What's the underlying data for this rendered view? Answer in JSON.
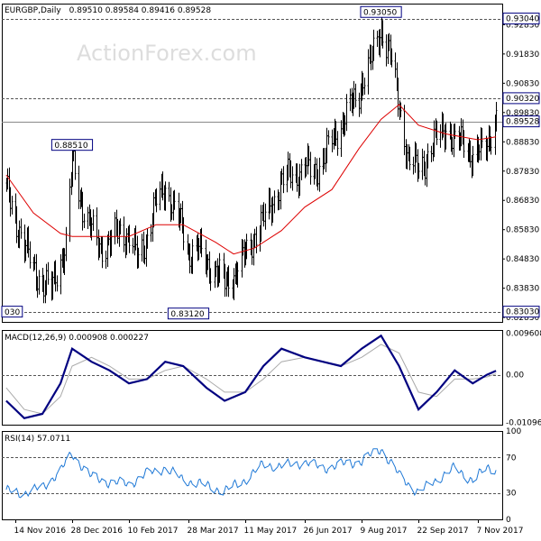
{
  "header": {
    "symbol": "EURGBP,Daily",
    "ohlc": "0.89510 0.89584 0.89416 0.89528"
  },
  "watermark": "ActionForex.com",
  "colors": {
    "price_bars": "#000000",
    "moving_average": "#dd0000",
    "macd_line": "#000080",
    "macd_signal": "#aaaaaa",
    "rsi_line": "#1e78d6",
    "level_box_border": "#000080",
    "dashed_levels": "#555555"
  },
  "chart_data": [
    {
      "type": "ohlc",
      "panel": "price",
      "header": "EURGBP,Daily 0.89510 0.89584 0.89416 0.89528",
      "ylim": [
        0.8268,
        0.9355
      ],
      "y_tick_labels": [
        "0.92830",
        "0.91830",
        "0.90830",
        "0.89830",
        "0.88830",
        "0.87830",
        "0.86830",
        "0.85830",
        "0.84830",
        "0.83830",
        "0.82830"
      ],
      "x_tick_labels": [
        "14 Nov 2016",
        "28 Dec 2016",
        "10 Feb 2017",
        "28 Mar 2017",
        "11 May 2017",
        "26 Jun 2017",
        "9 Aug 2017",
        "22 Sep 2017",
        "7 Nov 2017"
      ],
      "horizontal_levels": [
        {
          "value": 0.9304,
          "label": "0.93040"
        },
        {
          "value": 0.9032,
          "label": "0.90320"
        },
        {
          "value": 0.89528,
          "label": "0.89528",
          "style": "current"
        },
        {
          "value": 0.8303,
          "label": "0.83030"
        }
      ],
      "annotations": [
        {
          "date": "2016-12-28",
          "value": 0.8851,
          "label": "0.88510"
        },
        {
          "date": "2017-03-28",
          "value": 0.8312,
          "label": "0.83120"
        },
        {
          "date": "2017-08-24",
          "value": 0.9305,
          "label": "0.93050"
        },
        {
          "date": "2016-11-14",
          "value": 0.8303,
          "label": "030"
        }
      ],
      "close_path": [
        [
          "2016-11-07",
          0.872
        ],
        [
          "2016-11-14",
          0.862
        ],
        [
          "2016-11-21",
          0.853
        ],
        [
          "2016-11-28",
          0.845
        ],
        [
          "2016-12-05",
          0.84
        ],
        [
          "2016-12-12",
          0.838
        ],
        [
          "2016-12-19",
          0.848
        ],
        [
          "2016-12-23",
          0.853
        ],
        [
          "2016-12-28",
          0.882
        ],
        [
          "2017-01-05",
          0.866
        ],
        [
          "2017-01-12",
          0.858
        ],
        [
          "2017-01-19",
          0.852
        ],
        [
          "2017-01-26",
          0.854
        ],
        [
          "2017-02-02",
          0.858
        ],
        [
          "2017-02-10",
          0.856
        ],
        [
          "2017-02-17",
          0.848
        ],
        [
          "2017-02-24",
          0.856
        ],
        [
          "2017-03-03",
          0.868
        ],
        [
          "2017-03-10",
          0.873
        ],
        [
          "2017-03-17",
          0.865
        ],
        [
          "2017-03-24",
          0.858
        ],
        [
          "2017-03-28",
          0.85
        ],
        [
          "2017-04-04",
          0.852
        ],
        [
          "2017-04-11",
          0.847
        ],
        [
          "2017-04-18",
          0.844
        ],
        [
          "2017-04-25",
          0.84
        ],
        [
          "2017-05-02",
          0.843
        ],
        [
          "2017-05-11",
          0.85
        ],
        [
          "2017-05-18",
          0.856
        ],
        [
          "2017-05-25",
          0.862
        ],
        [
          "2017-06-01",
          0.868
        ],
        [
          "2017-06-08",
          0.874
        ],
        [
          "2017-06-15",
          0.878
        ],
        [
          "2017-06-22",
          0.877
        ],
        [
          "2017-06-26",
          0.88
        ],
        [
          "2017-07-03",
          0.878
        ],
        [
          "2017-07-10",
          0.882
        ],
        [
          "2017-07-17",
          0.889
        ],
        [
          "2017-07-24",
          0.894
        ],
        [
          "2017-07-31",
          0.9
        ],
        [
          "2017-08-07",
          0.905
        ],
        [
          "2017-08-09",
          0.909
        ],
        [
          "2017-08-16",
          0.916
        ],
        [
          "2017-08-24",
          0.927
        ],
        [
          "2017-08-31",
          0.918
        ],
        [
          "2017-09-07",
          0.9
        ],
        [
          "2017-09-14",
          0.882
        ],
        [
          "2017-09-22",
          0.879
        ],
        [
          "2017-09-29",
          0.883
        ],
        [
          "2017-10-06",
          0.89
        ],
        [
          "2017-10-13",
          0.894
        ],
        [
          "2017-10-20",
          0.887
        ],
        [
          "2017-10-27",
          0.89
        ],
        [
          "2017-11-03",
          0.882
        ],
        [
          "2017-11-07",
          0.884
        ],
        [
          "2017-11-14",
          0.889
        ],
        [
          "2017-11-21",
          0.8953
        ]
      ],
      "ma_path": [
        [
          "2016-11-07",
          0.877
        ],
        [
          "2016-11-28",
          0.864
        ],
        [
          "2016-12-19",
          0.857
        ],
        [
          "2016-12-28",
          0.856
        ],
        [
          "2017-01-19",
          0.856
        ],
        [
          "2017-02-10",
          0.856
        ],
        [
          "2017-03-03",
          0.86
        ],
        [
          "2017-03-24",
          0.86
        ],
        [
          "2017-04-18",
          0.854
        ],
        [
          "2017-05-02",
          0.85
        ],
        [
          "2017-05-18",
          0.852
        ],
        [
          "2017-06-08",
          0.858
        ],
        [
          "2017-06-26",
          0.866
        ],
        [
          "2017-07-17",
          0.872
        ],
        [
          "2017-08-07",
          0.886
        ],
        [
          "2017-08-24",
          0.896
        ],
        [
          "2017-09-07",
          0.901
        ],
        [
          "2017-09-22",
          0.894
        ],
        [
          "2017-10-13",
          0.891
        ],
        [
          "2017-11-07",
          0.889
        ],
        [
          "2017-11-21",
          0.89
        ]
      ]
    },
    {
      "type": "line",
      "panel": "macd",
      "label": "MACD(12,26,9) 0.000908 0.000227",
      "ylim": [
        -0.0115,
        0.0103
      ],
      "y_tick_labels": [
        "0.009608",
        "0.00",
        "-0.010961"
      ],
      "zero_line": true,
      "macd_path": [
        [
          "2016-11-07",
          -0.006
        ],
        [
          "2016-11-21",
          -0.01
        ],
        [
          "2016-12-05",
          -0.009
        ],
        [
          "2016-12-19",
          -0.002
        ],
        [
          "2016-12-28",
          0.006
        ],
        [
          "2017-01-12",
          0.003
        ],
        [
          "2017-01-26",
          0.001
        ],
        [
          "2017-02-10",
          -0.002
        ],
        [
          "2017-02-24",
          -0.001
        ],
        [
          "2017-03-10",
          0.003
        ],
        [
          "2017-03-24",
          0.002
        ],
        [
          "2017-04-11",
          -0.003
        ],
        [
          "2017-04-25",
          -0.006
        ],
        [
          "2017-05-11",
          -0.004
        ],
        [
          "2017-05-25",
          0.002
        ],
        [
          "2017-06-08",
          0.006
        ],
        [
          "2017-06-26",
          0.004
        ],
        [
          "2017-07-10",
          0.003
        ],
        [
          "2017-07-24",
          0.002
        ],
        [
          "2017-08-09",
          0.006
        ],
        [
          "2017-08-24",
          0.009
        ],
        [
          "2017-09-07",
          0.002
        ],
        [
          "2017-09-22",
          -0.008
        ],
        [
          "2017-10-06",
          -0.004
        ],
        [
          "2017-10-20",
          0.001
        ],
        [
          "2017-11-03",
          -0.002
        ],
        [
          "2017-11-14",
          0.0
        ],
        [
          "2017-11-21",
          0.0009
        ]
      ],
      "signal_path": [
        [
          "2016-11-07",
          -0.003
        ],
        [
          "2016-11-21",
          -0.008
        ],
        [
          "2016-12-05",
          -0.009
        ],
        [
          "2016-12-19",
          -0.005
        ],
        [
          "2016-12-28",
          0.002
        ],
        [
          "2017-01-12",
          0.004
        ],
        [
          "2017-01-26",
          0.002
        ],
        [
          "2017-02-10",
          -0.001
        ],
        [
          "2017-02-24",
          -0.001
        ],
        [
          "2017-03-10",
          0.001
        ],
        [
          "2017-03-24",
          0.002
        ],
        [
          "2017-04-11",
          -0.001
        ],
        [
          "2017-04-25",
          -0.004
        ],
        [
          "2017-05-11",
          -0.004
        ],
        [
          "2017-05-25",
          -0.001
        ],
        [
          "2017-06-08",
          0.003
        ],
        [
          "2017-06-26",
          0.004
        ],
        [
          "2017-07-10",
          0.003
        ],
        [
          "2017-07-24",
          0.002
        ],
        [
          "2017-08-09",
          0.004
        ],
        [
          "2017-08-24",
          0.007
        ],
        [
          "2017-09-07",
          0.005
        ],
        [
          "2017-09-22",
          -0.004
        ],
        [
          "2017-10-06",
          -0.005
        ],
        [
          "2017-10-20",
          -0.001
        ],
        [
          "2017-11-03",
          -0.001
        ],
        [
          "2017-11-14",
          -0.0005
        ],
        [
          "2017-11-21",
          0.0002
        ]
      ]
    },
    {
      "type": "line",
      "panel": "rsi",
      "label": "RSI(14) 57.0711",
      "ylim": [
        0,
        100
      ],
      "y_tick_labels": [
        "100",
        "70",
        "30",
        "0"
      ],
      "levels": [
        70,
        30
      ],
      "rsi_path": [
        [
          "2016-11-07",
          32
        ],
        [
          "2016-11-21",
          30
        ],
        [
          "2016-12-05",
          36
        ],
        [
          "2016-12-19",
          55
        ],
        [
          "2016-12-28",
          74
        ],
        [
          "2017-01-12",
          48
        ],
        [
          "2017-01-26",
          42
        ],
        [
          "2017-02-10",
          40
        ],
        [
          "2017-02-24",
          52
        ],
        [
          "2017-03-10",
          58
        ],
        [
          "2017-03-24",
          45
        ],
        [
          "2017-04-11",
          38
        ],
        [
          "2017-04-25",
          32
        ],
        [
          "2017-05-11",
          45
        ],
        [
          "2017-05-25",
          62
        ],
        [
          "2017-06-08",
          60
        ],
        [
          "2017-06-26",
          65
        ],
        [
          "2017-07-10",
          58
        ],
        [
          "2017-07-24",
          62
        ],
        [
          "2017-08-09",
          66
        ],
        [
          "2017-08-24",
          80
        ],
        [
          "2017-09-07",
          50
        ],
        [
          "2017-09-22",
          30
        ],
        [
          "2017-10-06",
          45
        ],
        [
          "2017-10-20",
          58
        ],
        [
          "2017-11-03",
          44
        ],
        [
          "2017-11-14",
          58
        ],
        [
          "2017-11-21",
          57
        ]
      ]
    }
  ]
}
